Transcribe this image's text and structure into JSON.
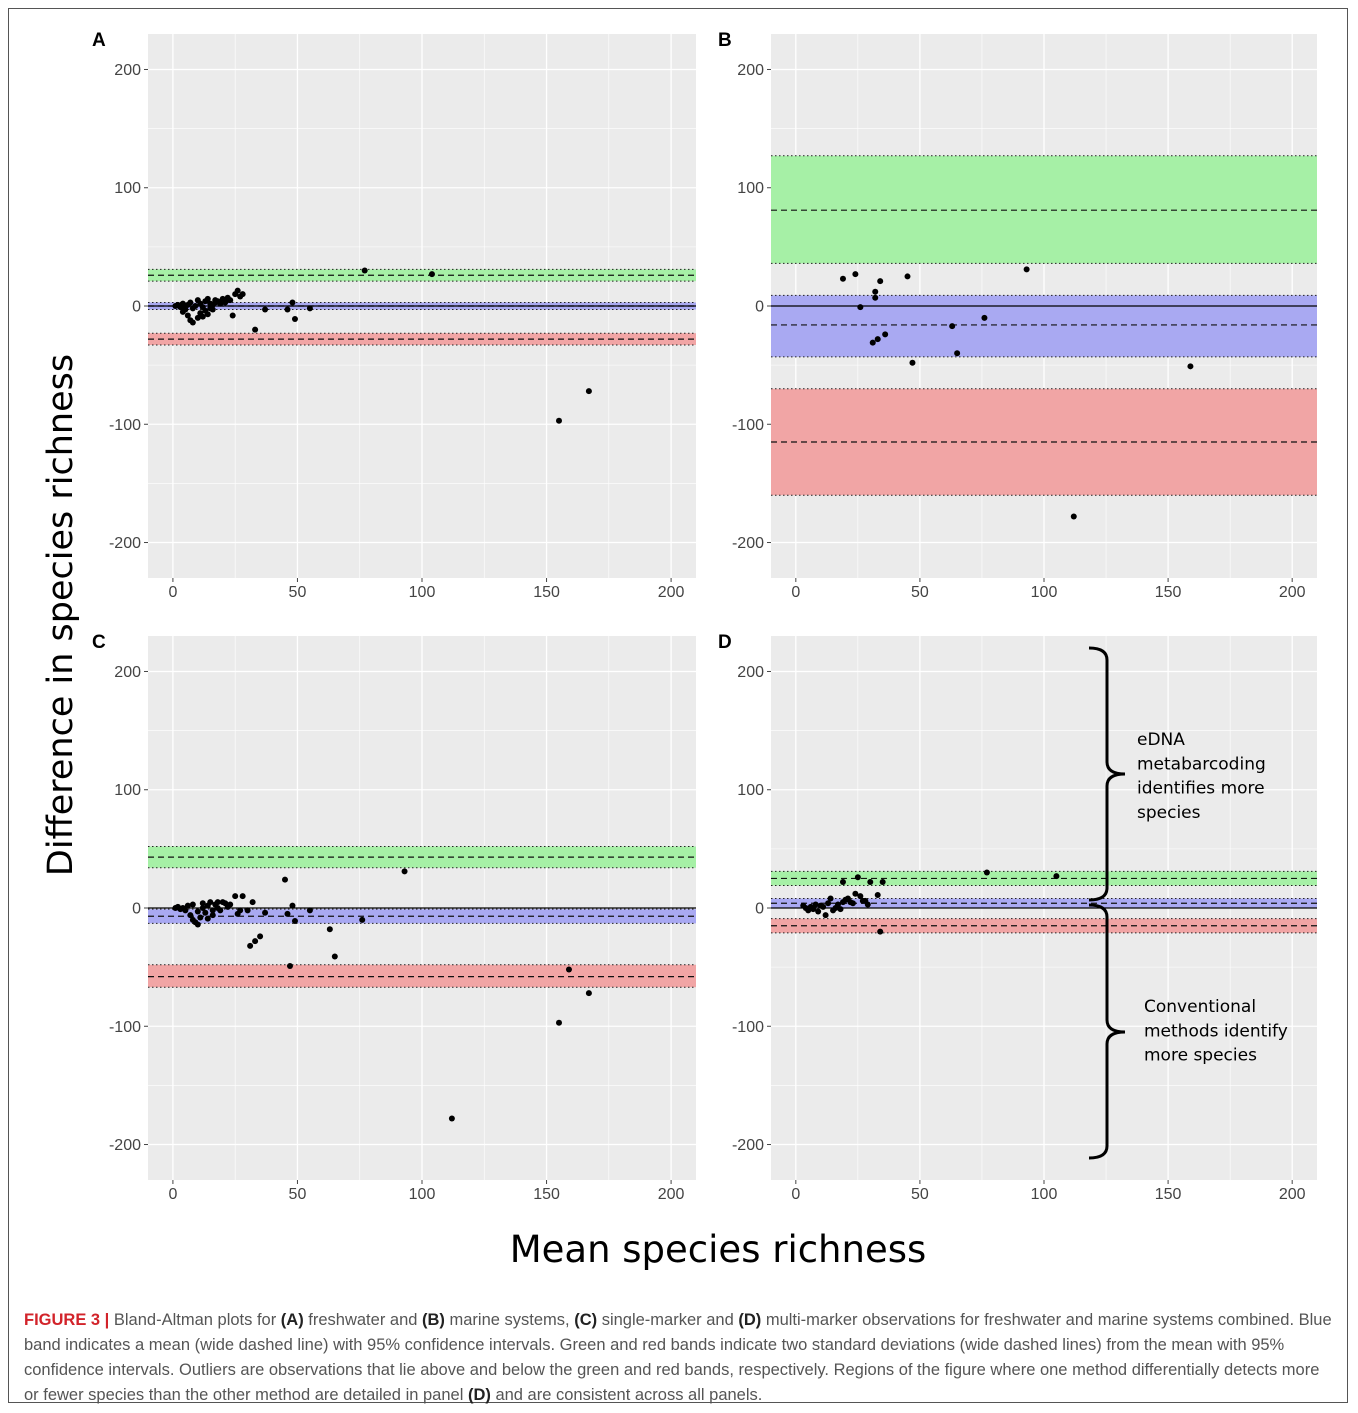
{
  "figure": {
    "ylabel": "Difference in species richness",
    "xlabel": "Mean species richness",
    "annotation_upper": [
      "eDNA",
      "metabarcoding",
      "identifies more",
      "species"
    ],
    "annotation_lower": [
      "Conventional",
      "methods identify",
      "more species"
    ],
    "colors": {
      "panel_bg": "#ebebeb",
      "grid": "#ffffff",
      "green_band": "#a6f0a6",
      "blue_band": "#a9a9f2",
      "red_band": "#f1a5a5",
      "points": "#000000"
    }
  },
  "caption": {
    "label": "FIGURE 3 |",
    "parts": [
      {
        "t": " Bland-Altman plots for "
      },
      {
        "t": "(A)",
        "b": true
      },
      {
        "t": " freshwater and "
      },
      {
        "t": "(B)",
        "b": true
      },
      {
        "t": " marine systems, "
      },
      {
        "t": "(C)",
        "b": true
      },
      {
        "t": " single-marker and "
      },
      {
        "t": "(D)",
        "b": true
      },
      {
        "t": " multi-marker observations for freshwater and marine systems combined. Blue band indicates a mean (wide dashed line) with 95% confidence intervals. Green and red bands indicate two standard deviations (wide dashed lines) from the mean with 95% confidence intervals. Outliers are observations that lie above and below the green and red bands, respectively. Regions of the figure where one method differentially detects more or fewer species than the other method are detailed in panel "
      },
      {
        "t": "(D)",
        "b": true
      },
      {
        "t": " and are consistent across all panels."
      }
    ]
  },
  "chart_data": [
    {
      "panel": "A",
      "type": "scatter",
      "xlim": [
        -10,
        210
      ],
      "ylim": [
        -230,
        230
      ],
      "xticks": [
        0,
        50,
        100,
        150,
        200
      ],
      "yticks": [
        -200,
        -100,
        0,
        100,
        200
      ],
      "grid": true,
      "bands": {
        "upper_loa": {
          "mean": 26,
          "lo": 21,
          "hi": 31
        },
        "bias": {
          "mean": 0,
          "lo": -3,
          "hi": 3
        },
        "lower_loa": {
          "mean": -28,
          "lo": -33,
          "hi": -23
        }
      },
      "points": [
        [
          1,
          0
        ],
        [
          2,
          1
        ],
        [
          3,
          -1
        ],
        [
          4,
          2
        ],
        [
          5,
          0
        ],
        [
          4,
          -5
        ],
        [
          5,
          -3
        ],
        [
          6,
          1
        ],
        [
          7,
          3
        ],
        [
          8,
          -2
        ],
        [
          9,
          0
        ],
        [
          10,
          5
        ],
        [
          11,
          2
        ],
        [
          12,
          -1
        ],
        [
          13,
          4
        ],
        [
          14,
          6
        ],
        [
          15,
          2
        ],
        [
          16,
          -3
        ],
        [
          17,
          5
        ],
        [
          6,
          -8
        ],
        [
          7,
          -12
        ],
        [
          8,
          -14
        ],
        [
          10,
          -10
        ],
        [
          11,
          -6
        ],
        [
          12,
          -9
        ],
        [
          13,
          -4
        ],
        [
          14,
          -7
        ],
        [
          15,
          -2
        ],
        [
          16,
          1
        ],
        [
          17,
          3
        ],
        [
          18,
          4
        ],
        [
          19,
          2
        ],
        [
          20,
          6
        ],
        [
          21,
          3
        ],
        [
          22,
          7
        ],
        [
          23,
          5
        ],
        [
          24,
          -8
        ],
        [
          25,
          10
        ],
        [
          26,
          13
        ],
        [
          27,
          8
        ],
        [
          28,
          10
        ],
        [
          33,
          -20
        ],
        [
          37,
          -3
        ],
        [
          46,
          -3
        ],
        [
          48,
          3
        ],
        [
          49,
          -11
        ],
        [
          55,
          -2
        ],
        [
          77,
          30
        ],
        [
          104,
          27
        ],
        [
          155,
          -97
        ],
        [
          167,
          -72
        ]
      ]
    },
    {
      "panel": "B",
      "type": "scatter",
      "xlim": [
        -10,
        210
      ],
      "ylim": [
        -230,
        230
      ],
      "xticks": [
        0,
        50,
        100,
        150,
        200
      ],
      "yticks": [
        -200,
        -100,
        0,
        100,
        200
      ],
      "grid": true,
      "bands": {
        "upper_loa": {
          "mean": 81,
          "lo": 36,
          "hi": 127
        },
        "bias": {
          "mean": -16,
          "lo": -43,
          "hi": 9
        },
        "lower_loa": {
          "mean": -115,
          "lo": -160,
          "hi": -70
        }
      },
      "points": [
        [
          19,
          23
        ],
        [
          24,
          27
        ],
        [
          26,
          -1
        ],
        [
          31,
          -31
        ],
        [
          32,
          7
        ],
        [
          32,
          12
        ],
        [
          33,
          -28
        ],
        [
          34,
          21
        ],
        [
          36,
          -24
        ],
        [
          45,
          25
        ],
        [
          47,
          -48
        ],
        [
          63,
          -17
        ],
        [
          65,
          -40
        ],
        [
          76,
          -10
        ],
        [
          93,
          31
        ],
        [
          112,
          -178
        ],
        [
          159,
          -51
        ]
      ]
    },
    {
      "panel": "C",
      "type": "scatter",
      "xlim": [
        -10,
        210
      ],
      "ylim": [
        -230,
        230
      ],
      "xticks": [
        0,
        50,
        100,
        150,
        200
      ],
      "yticks": [
        -200,
        -100,
        0,
        100,
        200
      ],
      "grid": true,
      "bands": {
        "upper_loa": {
          "mean": 43,
          "lo": 34,
          "hi": 52
        },
        "bias": {
          "mean": -7,
          "lo": -13,
          "hi": -1
        },
        "lower_loa": {
          "mean": -58,
          "lo": -67,
          "hi": -48
        }
      },
      "points": [
        [
          1,
          0
        ],
        [
          2,
          1
        ],
        [
          3,
          -1
        ],
        [
          4,
          0
        ],
        [
          5,
          -2
        ],
        [
          6,
          2
        ],
        [
          7,
          -6
        ],
        [
          8,
          -10
        ],
        [
          9,
          -12
        ],
        [
          10,
          -14
        ],
        [
          11,
          -8
        ],
        [
          12,
          4
        ],
        [
          13,
          -4
        ],
        [
          14,
          2
        ],
        [
          15,
          5
        ],
        [
          16,
          -6
        ],
        [
          17,
          3
        ],
        [
          18,
          0
        ],
        [
          19,
          -2
        ],
        [
          20,
          5
        ],
        [
          21,
          4
        ],
        [
          22,
          1
        ],
        [
          8,
          3
        ],
        [
          10,
          -3
        ],
        [
          12,
          0
        ],
        [
          14,
          -9
        ],
        [
          16,
          -2
        ],
        [
          18,
          5
        ],
        [
          23,
          3
        ],
        [
          25,
          10
        ],
        [
          26,
          -5
        ],
        [
          27,
          -2
        ],
        [
          28,
          10
        ],
        [
          30,
          -2
        ],
        [
          31,
          -32
        ],
        [
          32,
          5
        ],
        [
          33,
          -28
        ],
        [
          35,
          -24
        ],
        [
          37,
          -4
        ],
        [
          45,
          24
        ],
        [
          46,
          -5
        ],
        [
          47,
          -49
        ],
        [
          48,
          2
        ],
        [
          49,
          -11
        ],
        [
          55,
          -2
        ],
        [
          63,
          -18
        ],
        [
          65,
          -41
        ],
        [
          76,
          -10
        ],
        [
          93,
          31
        ],
        [
          112,
          -178
        ],
        [
          155,
          -97
        ],
        [
          159,
          -52
        ],
        [
          167,
          -72
        ]
      ]
    },
    {
      "panel": "D",
      "type": "scatter",
      "xlim": [
        -10,
        210
      ],
      "ylim": [
        -230,
        230
      ],
      "xticks": [
        0,
        50,
        100,
        150,
        200
      ],
      "yticks": [
        -200,
        -100,
        0,
        100,
        200
      ],
      "grid": true,
      "bands": {
        "upper_loa": {
          "mean": 25,
          "lo": 19,
          "hi": 31
        },
        "bias": {
          "mean": 4,
          "lo": 0,
          "hi": 8
        },
        "lower_loa": {
          "mean": -15,
          "lo": -21,
          "hi": -9
        }
      },
      "points": [
        [
          3,
          2
        ],
        [
          4,
          0
        ],
        [
          5,
          -2
        ],
        [
          6,
          1
        ],
        [
          7,
          -1
        ],
        [
          8,
          3
        ],
        [
          9,
          -3
        ],
        [
          10,
          2
        ],
        [
          11,
          1
        ],
        [
          12,
          -6
        ],
        [
          13,
          4
        ],
        [
          14,
          8
        ],
        [
          15,
          -2
        ],
        [
          16,
          0
        ],
        [
          17,
          3
        ],
        [
          18,
          -1
        ],
        [
          19,
          5
        ],
        [
          20,
          7
        ],
        [
          21,
          8
        ],
        [
          23,
          4
        ],
        [
          24,
          12
        ],
        [
          25,
          26
        ],
        [
          26,
          10
        ],
        [
          27,
          6
        ],
        [
          28,
          6
        ],
        [
          29,
          3
        ],
        [
          30,
          22
        ],
        [
          33,
          11
        ],
        [
          34,
          -20
        ],
        [
          35,
          22
        ],
        [
          77,
          30
        ],
        [
          105,
          27
        ],
        [
          19,
          22
        ],
        [
          22,
          5
        ]
      ]
    }
  ]
}
